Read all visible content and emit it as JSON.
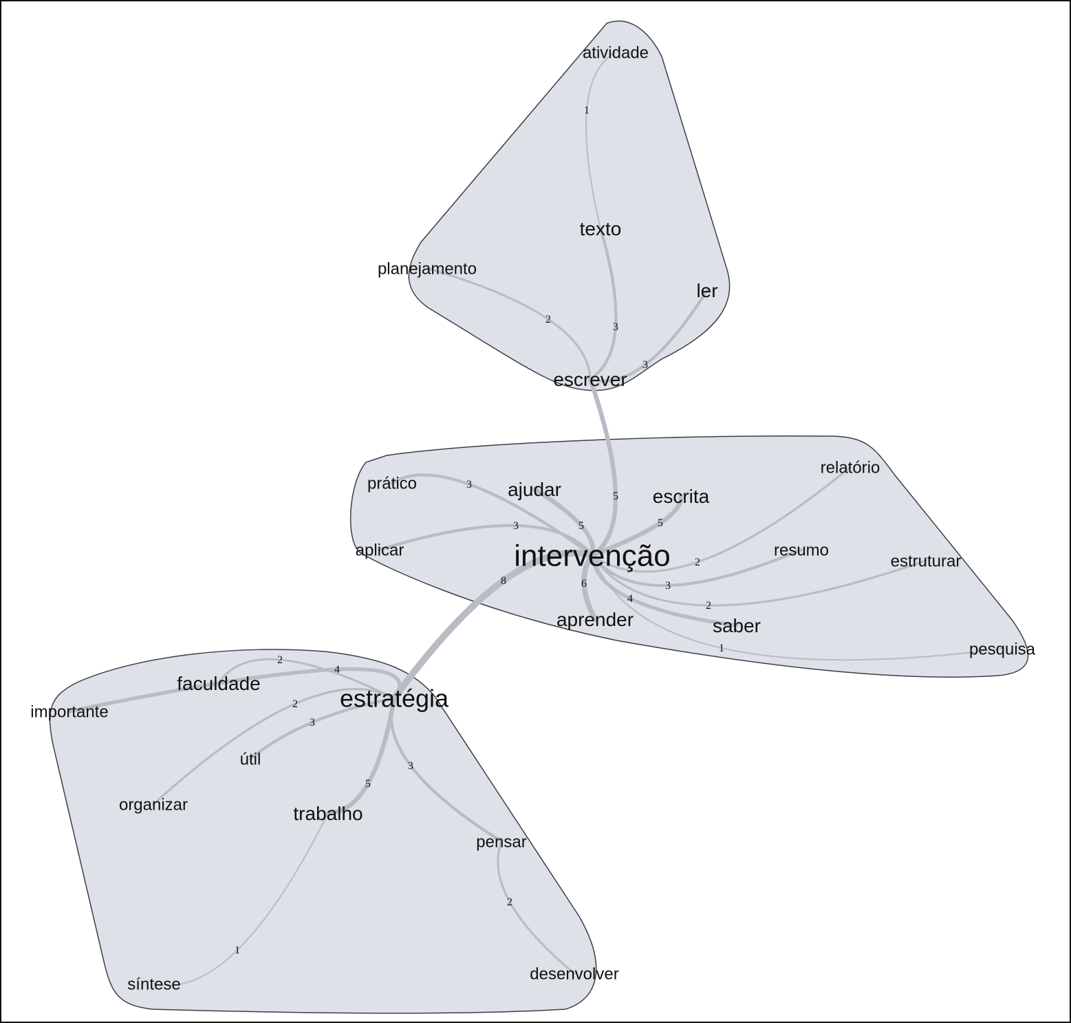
{
  "clusters": [
    {
      "nodes": [
        "atividade",
        "texto",
        "planejamento",
        "ler",
        "escrever"
      ]
    },
    {
      "nodes": [
        "prático",
        "ajudar",
        "escrita",
        "relatório",
        "aplicar",
        "intervenção",
        "resumo",
        "estruturar",
        "aprender",
        "saber",
        "pesquisa"
      ]
    },
    {
      "nodes": [
        "faculdade",
        "importante",
        "estratégia",
        "útil",
        "organizar",
        "trabalho",
        "pensar",
        "síntese",
        "desenvolver"
      ]
    }
  ],
  "cluster_fill": "#dfe1e8",
  "edge_color": "#b9bcc4",
  "nodes": [
    {
      "label": "atividade",
      "size": "small"
    },
    {
      "label": "texto",
      "size": "medium"
    },
    {
      "label": "planejamento",
      "size": "small"
    },
    {
      "label": "ler",
      "size": "medium"
    },
    {
      "label": "escrever",
      "size": "medium"
    },
    {
      "label": "prático",
      "size": "small"
    },
    {
      "label": "ajudar",
      "size": "medium"
    },
    {
      "label": "escrita",
      "size": "medium"
    },
    {
      "label": "relatório",
      "size": "small"
    },
    {
      "label": "aplicar",
      "size": "small"
    },
    {
      "label": "intervenção",
      "size": "large"
    },
    {
      "label": "resumo",
      "size": "small"
    },
    {
      "label": "estruturar",
      "size": "small"
    },
    {
      "label": "aprender",
      "size": "medium"
    },
    {
      "label": "saber",
      "size": "medium"
    },
    {
      "label": "pesquisa",
      "size": "small"
    },
    {
      "label": "faculdade",
      "size": "medium"
    },
    {
      "label": "importante",
      "size": "small"
    },
    {
      "label": "estratégia",
      "size": "large-2"
    },
    {
      "label": "útil",
      "size": "small"
    },
    {
      "label": "organizar",
      "size": "small"
    },
    {
      "label": "trabalho",
      "size": "medium"
    },
    {
      "label": "pensar",
      "size": "small"
    },
    {
      "label": "síntese",
      "size": "small"
    },
    {
      "label": "desenvolver",
      "size": "small"
    }
  ],
  "edges": [
    {
      "from": "atividade",
      "to": "texto",
      "weight": "1"
    },
    {
      "from": "texto",
      "to": "escrever",
      "weight": "3"
    },
    {
      "from": "planejamento",
      "to": "escrever",
      "weight": "2"
    },
    {
      "from": "ler",
      "to": "escrever",
      "weight": "3"
    },
    {
      "from": "escrever",
      "to": "intervenção",
      "weight": "5"
    },
    {
      "from": "prático",
      "to": "intervenção",
      "weight": "3"
    },
    {
      "from": "ajudar",
      "to": "intervenção",
      "weight": "5"
    },
    {
      "from": "aplicar",
      "to": "intervenção",
      "weight": "3"
    },
    {
      "from": "escrita",
      "to": "intervenção",
      "weight": "5"
    },
    {
      "from": "relatório",
      "to": "intervenção",
      "weight": "2"
    },
    {
      "from": "resumo",
      "to": "intervenção",
      "weight": "3"
    },
    {
      "from": "estruturar",
      "to": "intervenção",
      "weight": "2"
    },
    {
      "from": "saber",
      "to": "intervenção",
      "weight": "4"
    },
    {
      "from": "pesquisa",
      "to": "intervenção",
      "weight": "1"
    },
    {
      "from": "aprender",
      "to": "intervenção",
      "weight": "6"
    },
    {
      "from": "intervenção",
      "to": "estratégia",
      "weight": "8"
    },
    {
      "from": "faculdade",
      "to": "estratégia",
      "weight": "2"
    },
    {
      "from": "importante",
      "to": "estratégia",
      "weight": "4"
    },
    {
      "from": "organizar",
      "to": "estratégia",
      "weight": "2"
    },
    {
      "from": "útil",
      "to": "estratégia",
      "weight": "3"
    },
    {
      "from": "trabalho",
      "to": "estratégia",
      "weight": "5"
    },
    {
      "from": "pensar",
      "to": "estratégia",
      "weight": "3"
    },
    {
      "from": "pensar",
      "to": "desenvolver",
      "weight": "2"
    },
    {
      "from": "trabalho",
      "to": "síntese",
      "weight": "1"
    }
  ]
}
